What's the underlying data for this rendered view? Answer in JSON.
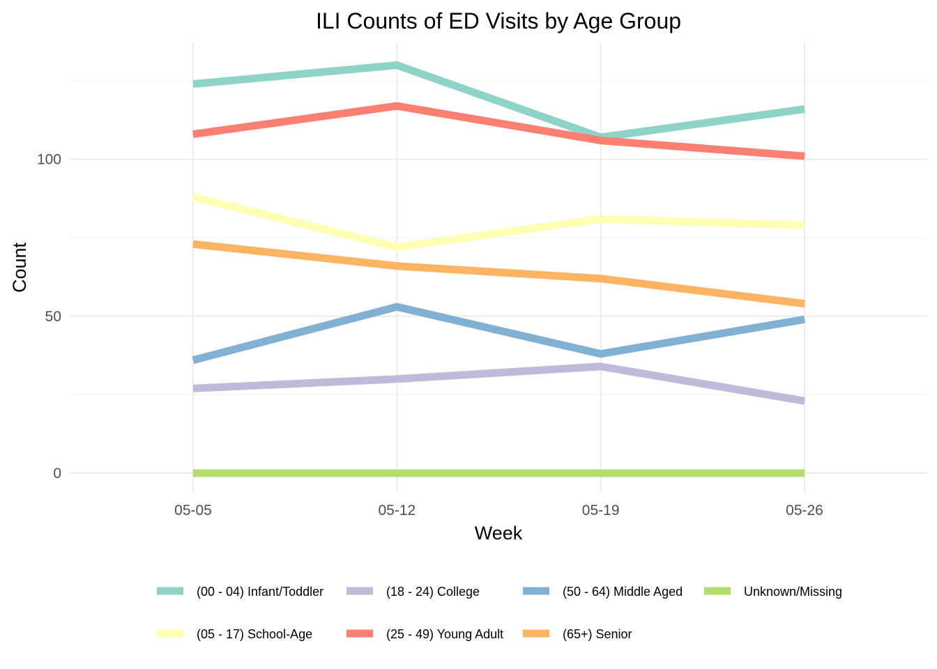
{
  "chart_data": {
    "type": "line",
    "title": "ILI Counts of ED Visits by Age Group",
    "xlabel": "Week",
    "ylabel": "Count",
    "categories": [
      "05-05",
      "05-12",
      "05-19",
      "05-26"
    ],
    "ylim": [
      -6,
      137
    ],
    "yticks": [
      0,
      50,
      100
    ],
    "grid": true,
    "legend_position": "bottom",
    "series": [
      {
        "name": "(00 - 04) Infant/Toddler",
        "color": "#8DD3C7",
        "values": [
          124,
          130,
          107,
          116
        ]
      },
      {
        "name": "(05 - 17) School-Age",
        "color": "#FFFFB3",
        "values": [
          88,
          72,
          81,
          79
        ]
      },
      {
        "name": "(18 - 24) College",
        "color": "#BEBADA",
        "values": [
          27,
          30,
          34,
          23
        ]
      },
      {
        "name": "(25 - 49) Young Adult",
        "color": "#FB8072",
        "values": [
          108,
          117,
          106,
          101
        ]
      },
      {
        "name": "(50 - 64) Middle Aged",
        "color": "#80B1D3",
        "values": [
          36,
          53,
          38,
          49
        ]
      },
      {
        "name": "(65+) Senior",
        "color": "#FDB462",
        "values": [
          73,
          66,
          62,
          54
        ]
      },
      {
        "name": "Unknown/Missing",
        "color": "#B3DE69",
        "values": [
          0,
          0,
          0,
          0
        ]
      }
    ]
  }
}
